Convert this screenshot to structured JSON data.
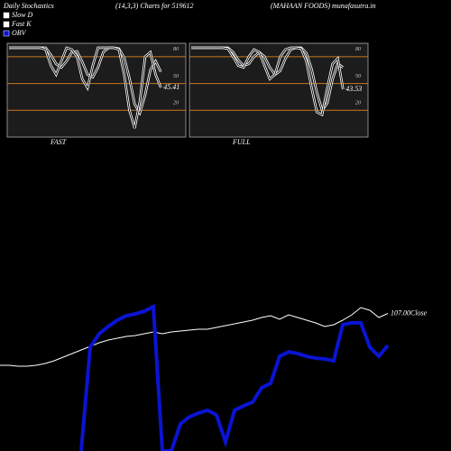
{
  "title": "Daily Stochastics",
  "subtitle": "(14,3,3) Charts for 519612",
  "source": "(MAHAAN  FOODS) munafasutra.in",
  "chart_data": [
    {
      "type": "line",
      "label": "FAST",
      "ylim": [
        -10,
        95
      ],
      "yticks": [
        80,
        50,
        20
      ],
      "grid": true,
      "grid_color": "#c8781e",
      "series": [
        {
          "name": "Slow D",
          "color": "#ffffff",
          "values": [
            90,
            90,
            90,
            90,
            90,
            90,
            90,
            90,
            82,
            72,
            68,
            75,
            85,
            86,
            74,
            60,
            57,
            68,
            85,
            90,
            90,
            89,
            79,
            56,
            27,
            17,
            37,
            65,
            75,
            63
          ]
        },
        {
          "name": "Fast K",
          "color": "#ffffff",
          "values": [
            90,
            90,
            90,
            90,
            90,
            90,
            90,
            88,
            70,
            60,
            75,
            90,
            88,
            80,
            55,
            45,
            70,
            90,
            90,
            90,
            90,
            88,
            60,
            20,
            0,
            30,
            80,
            85,
            60,
            45.41
          ]
        }
      ],
      "label_series": 1
    },
    {
      "type": "line",
      "label": "FULL",
      "ylim": [
        -10,
        95
      ],
      "yticks": [
        80,
        50,
        20
      ],
      "grid": true,
      "grid_color": "#c8781e",
      "series": [
        {
          "name": "Slow D",
          "color": "#ffffff",
          "values": [
            90,
            90,
            90,
            90,
            90,
            90,
            90,
            90,
            85,
            76,
            70,
            72,
            80,
            85,
            80,
            68,
            60,
            64,
            78,
            88,
            90,
            90,
            84,
            66,
            40,
            20,
            28,
            55,
            72,
            68
          ]
        },
        {
          "name": "Fast K",
          "color": "#ffffff",
          "values": [
            90,
            90,
            90,
            90,
            90,
            90,
            90,
            89,
            80,
            70,
            68,
            80,
            88,
            85,
            70,
            55,
            60,
            80,
            88,
            90,
            90,
            89,
            75,
            45,
            18,
            15,
            45,
            72,
            78,
            43.53
          ]
        }
      ],
      "label_series": 1
    },
    {
      "type": "line",
      "x": [
        0,
        1,
        2,
        3,
        4,
        5,
        6,
        7,
        8,
        9,
        10,
        11,
        12,
        13,
        14,
        15,
        16,
        17,
        18,
        19,
        20,
        21,
        22,
        23,
        24,
        25,
        26,
        27,
        28,
        29,
        30,
        31,
        32,
        33,
        34,
        35,
        36,
        37,
        38,
        39,
        40,
        41,
        42,
        43
      ],
      "xlim": [
        0,
        43
      ],
      "ylim": [
        50,
        140
      ],
      "y2lim": [
        0,
        100
      ],
      "series": [
        {
          "name": "Close",
          "color": "#ffffff",
          "values": [
            84,
            84,
            83.6,
            83.6,
            84,
            84.8,
            86,
            87.6,
            89.2,
            90.8,
            92.4,
            94,
            95.2,
            96,
            96.8,
            97.2,
            98,
            98.8,
            98,
            98.8,
            99.2,
            99.6,
            100,
            100,
            100.8,
            101.6,
            102.4,
            103.2,
            104,
            105.2,
            106,
            104.4,
            106.4,
            105.2,
            104,
            102.8,
            101.2,
            102,
            104,
            106.4,
            109.6,
            108.4,
            105.2,
            107
          ],
          "value_labels": [
            null,
            null,
            null,
            null,
            null,
            null,
            null,
            null,
            null,
            null,
            null,
            null,
            null,
            null,
            null,
            null,
            null,
            null,
            null,
            null,
            null,
            null,
            null,
            null,
            null,
            null,
            null,
            null,
            null,
            null,
            null,
            null,
            null,
            null,
            null,
            null,
            null,
            null,
            null,
            null,
            null,
            null,
            null,
            "107.00"
          ]
        },
        {
          "name": "OBV",
          "color": "#0a14d2",
          "axis": "y2",
          "values": [
            null,
            null,
            null,
            null,
            null,
            null,
            null,
            null,
            null,
            -4.4,
            46.7,
            53.3,
            56.9,
            60,
            62.2,
            63.1,
            64.4,
            66.7,
            -4.4,
            -4.4,
            8.9,
            12.4,
            14.2,
            15.6,
            13.3,
            0,
            15.6,
            17.8,
            19.6,
            26.7,
            28.9,
            42.2,
            44.4,
            43.6,
            42.2,
            41.3,
            40.9,
            40,
            57.8,
            58.7,
            58.7,
            46.7,
            42.2,
            47.6
          ]
        }
      ]
    }
  ]
}
